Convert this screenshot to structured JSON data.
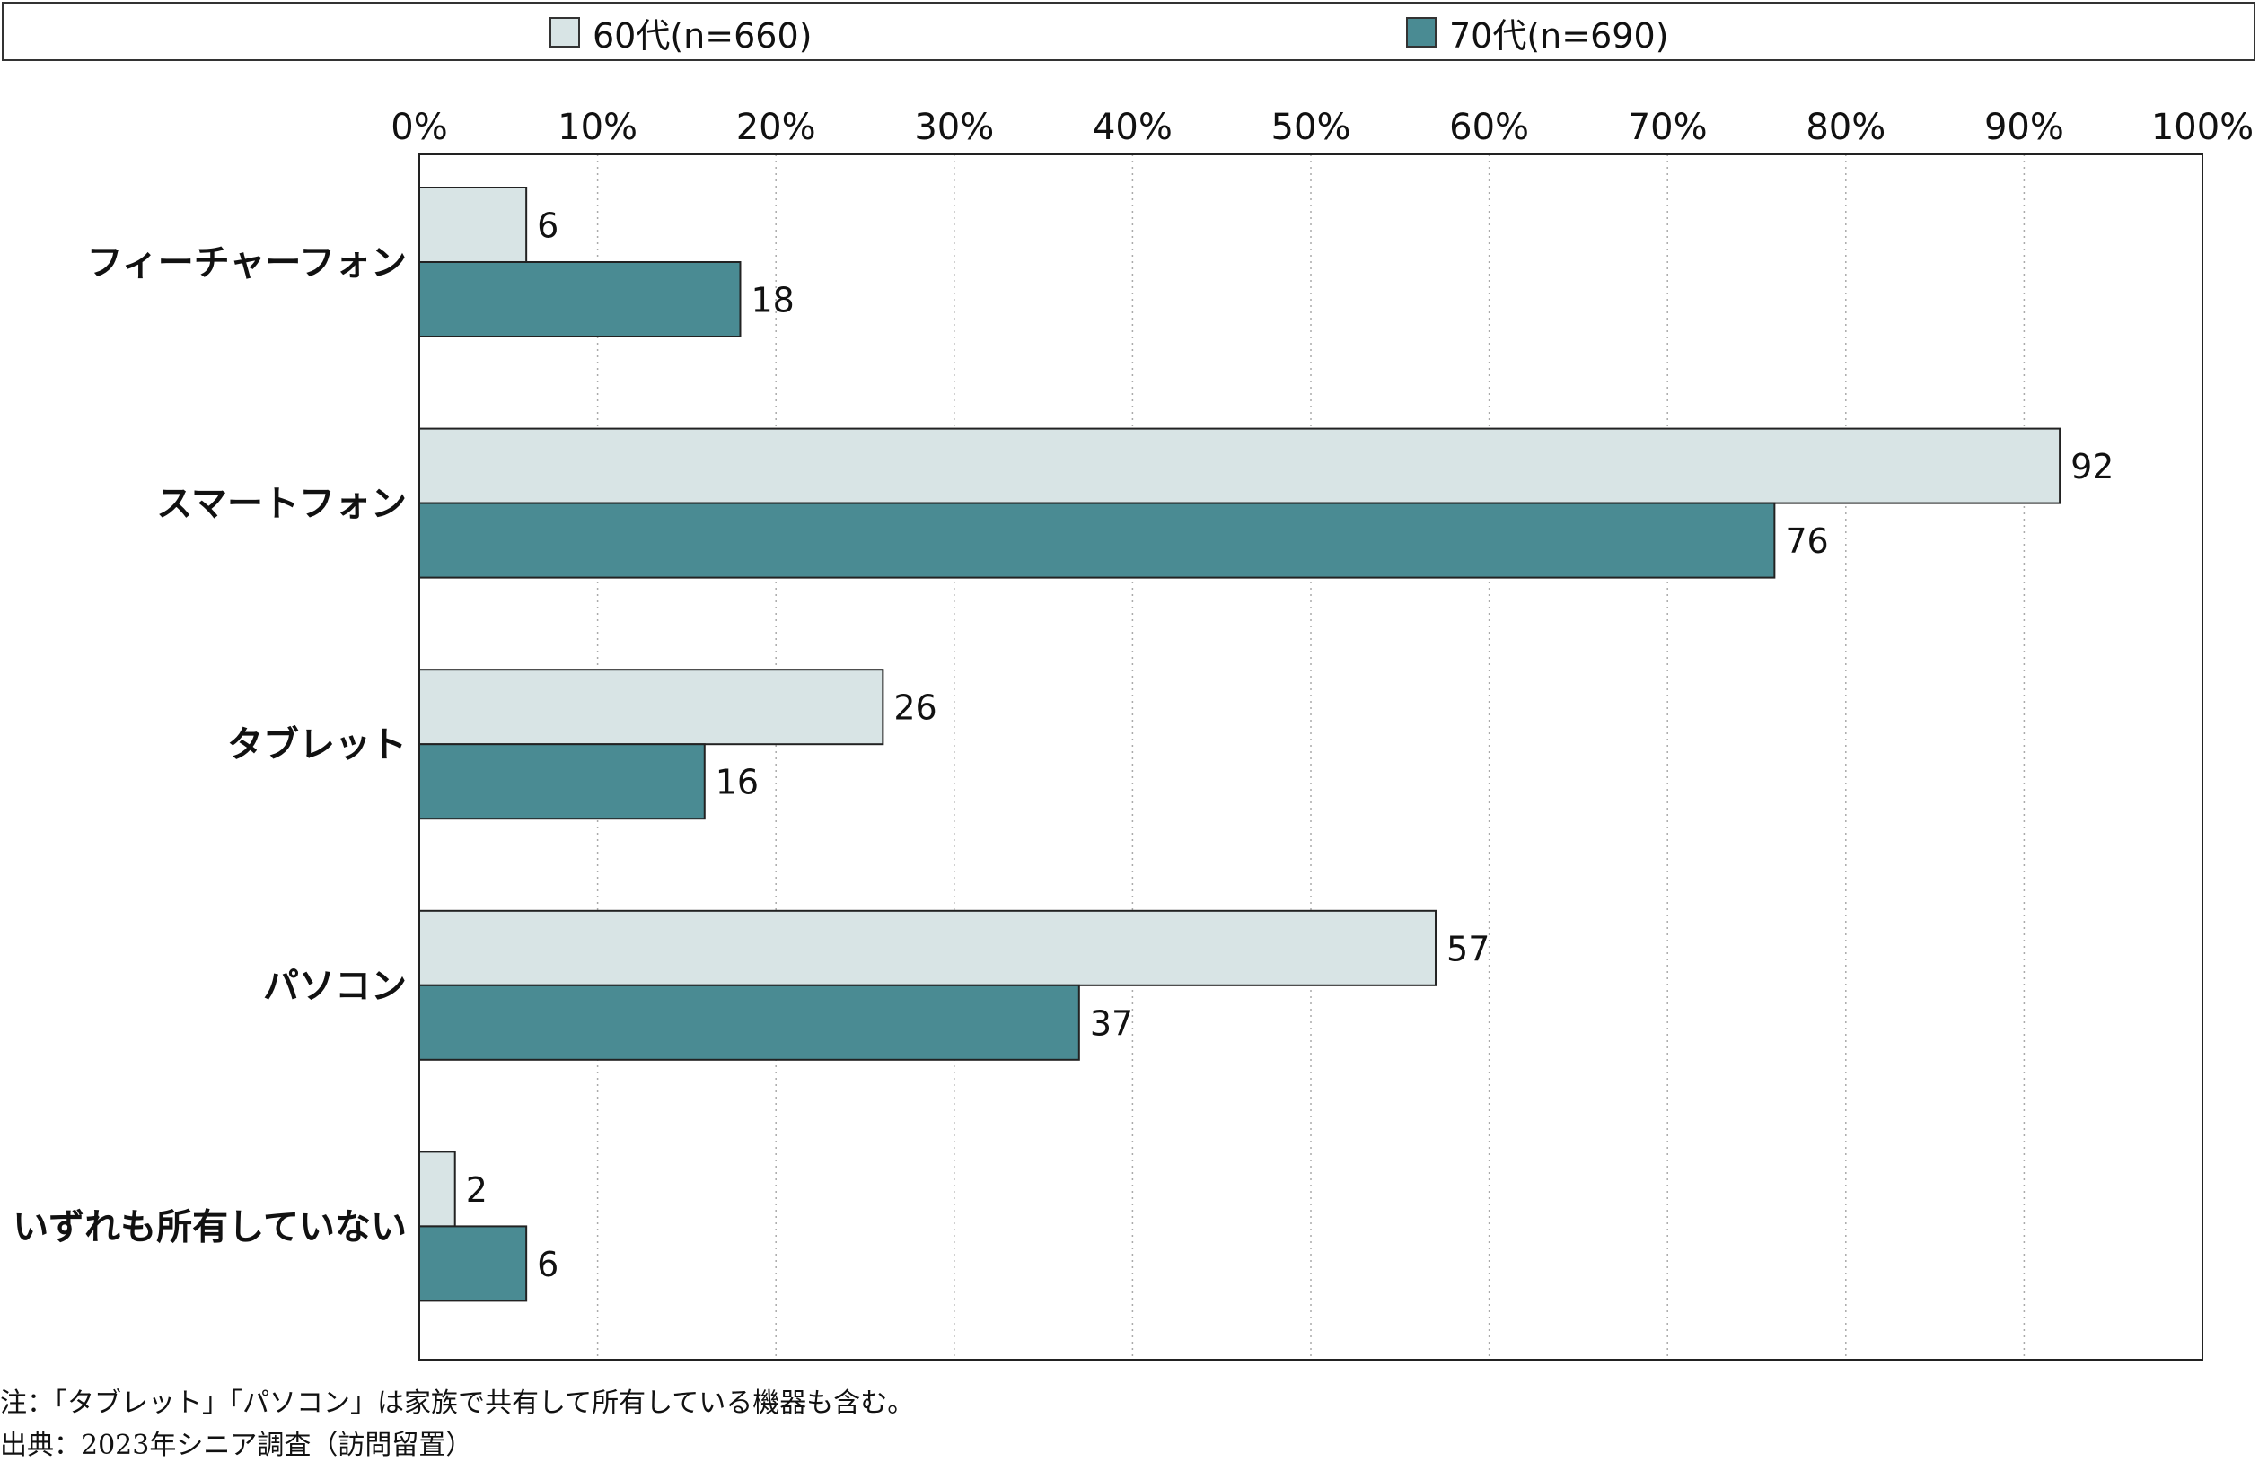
{
  "chart_data": {
    "type": "bar",
    "orientation": "horizontal",
    "categories": [
      "フィーチャーフォン",
      "スマートフォン",
      "タブレット",
      "パソコン",
      "いずれも所有していない"
    ],
    "series": [
      {
        "name": "60代(n=660)",
        "values": [
          6,
          92,
          26,
          57,
          2
        ],
        "color": "#d8e4e5"
      },
      {
        "name": "70代(n=690)",
        "values": [
          18,
          76,
          16,
          37,
          6
        ],
        "color": "#4a8b93"
      }
    ],
    "xlim": [
      0,
      100
    ],
    "x_ticks": [
      "0%",
      "10%",
      "20%",
      "30%",
      "40%",
      "50%",
      "60%",
      "70%",
      "80%",
      "90%",
      "100%"
    ],
    "grid": true,
    "legend_position": "top"
  },
  "notes": {
    "note": "注：「タブレット」「パソコン」は家族で共有して所有している機器も含む。",
    "source": "出典：2023年シニア調査（訪問留置）"
  }
}
